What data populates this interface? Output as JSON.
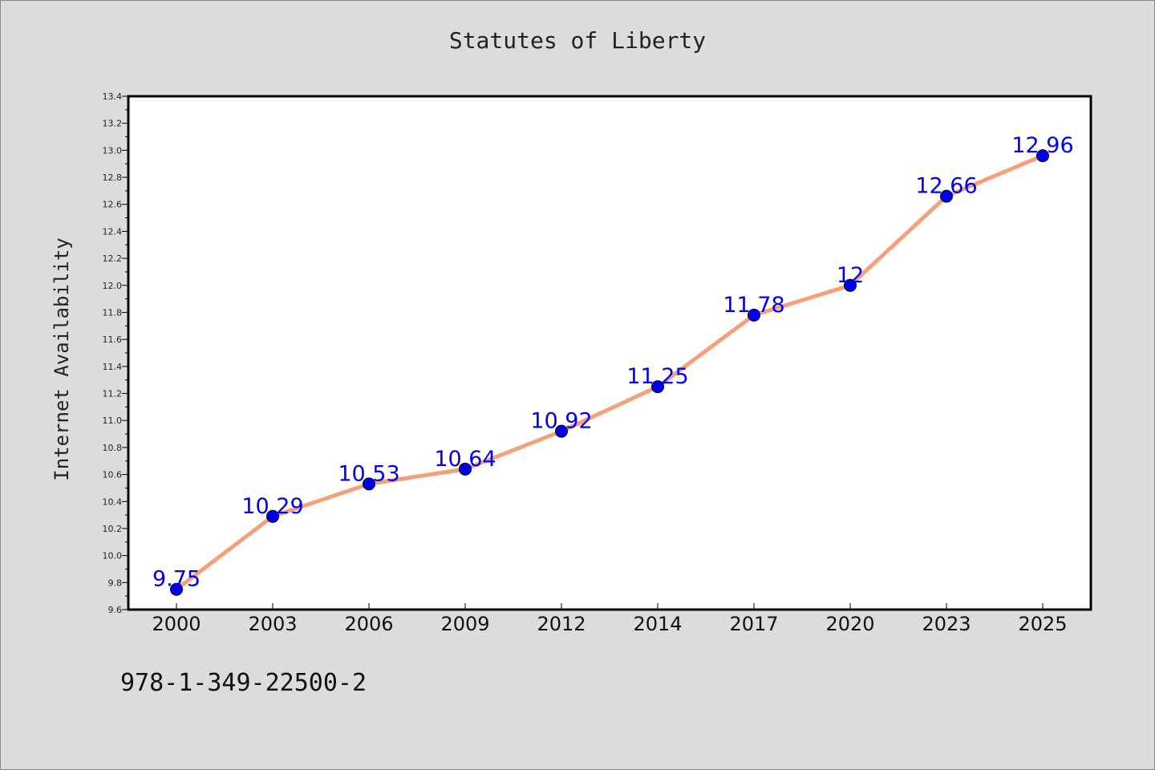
{
  "chart_data": {
    "type": "line",
    "title": "Statutes of Liberty",
    "xlabel": "",
    "ylabel": "Internet Availability",
    "categories": [
      "2000",
      "2003",
      "2006",
      "2009",
      "2012",
      "2014",
      "2017",
      "2020",
      "2023",
      "2025"
    ],
    "series": [
      {
        "values": [
          9.75,
          10.29,
          10.53,
          10.64,
          10.92,
          11.25,
          11.78,
          12,
          12.66,
          12.96
        ],
        "data_labels": [
          "9.75",
          "10.29",
          "10.53",
          "10.64",
          "10.92",
          "11.25",
          "11.78",
          "12",
          "12.66",
          "12.96"
        ]
      }
    ],
    "ylim": [
      9.6,
      13.4
    ],
    "yticks": [
      "9.6",
      "9.8",
      "10.0",
      "10.2",
      "10.4",
      "10.6",
      "10.8",
      "11.0",
      "11.2",
      "11.4",
      "11.6",
      "11.8",
      "12.0",
      "12.2",
      "12.4",
      "12.6",
      "12.8",
      "13.0",
      "13.2",
      "13.4"
    ],
    "grid": false,
    "colors": {
      "line": "#f4a07a",
      "marker": "#0000ee",
      "data_label": "#0000ee",
      "plot_background": "#ffffff",
      "page_background": "#dcdcdc"
    }
  },
  "footer": {
    "isbn": "978-1-349-22500-2"
  }
}
